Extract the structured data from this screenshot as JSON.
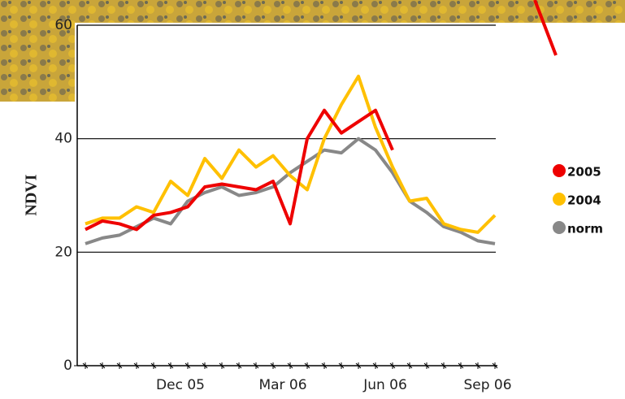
{
  "chart_data": {
    "type": "line",
    "y_label": "NDVI",
    "categories": [
      null,
      null,
      null,
      null,
      null,
      "Dec 05",
      null,
      null,
      null,
      null,
      null,
      "Mar 06",
      null,
      null,
      null,
      null,
      null,
      "Jun 06",
      null,
      null,
      null,
      null,
      null,
      "Sep 06",
      null
    ],
    "series": [
      {
        "name": "2005",
        "color": "#ee0000",
        "values": [
          24,
          25.5,
          25,
          24,
          26.5,
          27,
          28,
          31.5,
          32,
          31.5,
          31,
          32.5,
          25,
          40,
          45,
          41,
          43,
          45,
          38,
          null,
          null,
          null,
          null,
          null,
          null
        ]
      },
      {
        "name": "2004",
        "color": "#ffc000",
        "values": [
          25,
          26,
          26,
          28,
          27,
          32.5,
          30,
          36.5,
          33,
          38,
          35,
          37,
          33.5,
          31,
          40,
          46,
          51,
          42,
          35,
          29,
          29.5,
          25,
          24,
          23.5,
          26.5
        ]
      },
      {
        "name": "norm",
        "color": "#888888",
        "values": [
          21.5,
          22.5,
          23,
          24.5,
          26,
          25,
          29,
          30.5,
          31.5,
          30,
          30.5,
          31.5,
          34,
          36,
          38,
          37.5,
          40,
          38,
          34,
          29,
          27,
          24.5,
          23.5,
          22,
          21.5
        ]
      }
    ],
    "ylim": [
      0,
      60
    ],
    "yticks": [
      0,
      20,
      40,
      60
    ],
    "grid": true,
    "legend": "right"
  }
}
